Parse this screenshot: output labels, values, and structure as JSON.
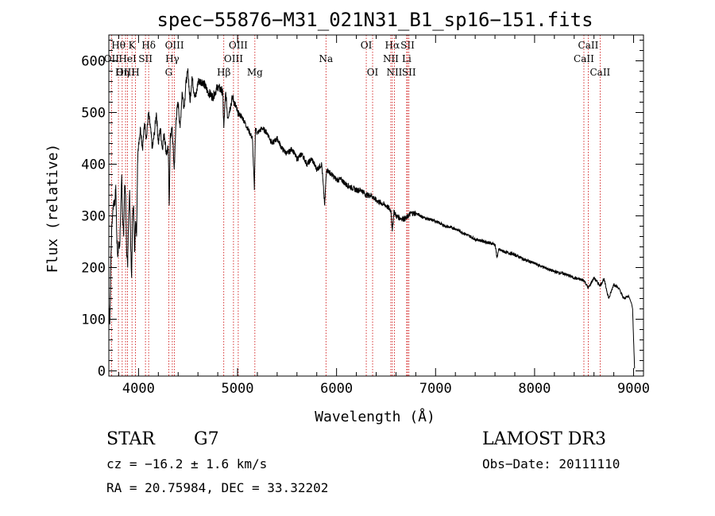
{
  "chart_data": {
    "type": "line",
    "title": "spec−55876−M31_021N31_B1_sp16−151.fits",
    "xlabel": "Wavelength (Å)",
    "ylabel": "Flux (relative)",
    "xlim": [
      3700,
      9100
    ],
    "ylim": [
      -10,
      650
    ],
    "xticks": [
      4000,
      5000,
      6000,
      7000,
      8000,
      9000
    ],
    "yticks": [
      0,
      100,
      200,
      300,
      400,
      500,
      600
    ],
    "series": [
      {
        "name": "spectrum",
        "x": [
          3700,
          3710,
          3720,
          3730,
          3740,
          3750,
          3760,
          3770,
          3780,
          3790,
          3800,
          3810,
          3820,
          3830,
          3840,
          3850,
          3860,
          3870,
          3880,
          3890,
          3900,
          3910,
          3920,
          3930,
          3940,
          3950,
          3960,
          3970,
          3980,
          3990,
          4000,
          4020,
          4040,
          4060,
          4080,
          4100,
          4120,
          4140,
          4160,
          4180,
          4200,
          4220,
          4240,
          4260,
          4280,
          4300,
          4310,
          4320,
          4340,
          4360,
          4380,
          4400,
          4420,
          4440,
          4460,
          4480,
          4500,
          4520,
          4540,
          4560,
          4580,
          4600,
          4650,
          4700,
          4750,
          4800,
          4850,
          4861,
          4880,
          4900,
          4950,
          5000,
          5050,
          5100,
          5150,
          5170,
          5180,
          5200,
          5250,
          5300,
          5350,
          5400,
          5450,
          5500,
          5550,
          5600,
          5650,
          5700,
          5750,
          5800,
          5850,
          5880,
          5890,
          5900,
          5950,
          6000,
          6050,
          6100,
          6150,
          6200,
          6250,
          6300,
          6350,
          6400,
          6450,
          6500,
          6550,
          6563,
          6580,
          6600,
          6650,
          6700,
          6750,
          6800,
          6900,
          7000,
          7100,
          7200,
          7300,
          7400,
          7500,
          7600,
          7620,
          7640,
          7700,
          7800,
          7900,
          8000,
          8100,
          8200,
          8300,
          8400,
          8500,
          8542,
          8600,
          8662,
          8700,
          8750,
          8800,
          8850,
          8900,
          8950,
          8980,
          8990,
          9000,
          9010
        ],
        "values": [
          130,
          90,
          210,
          280,
          310,
          330,
          320,
          360,
          260,
          220,
          250,
          240,
          310,
          380,
          300,
          260,
          360,
          340,
          230,
          200,
          300,
          350,
          250,
          180,
          300,
          320,
          230,
          290,
          260,
          400,
          440,
          470,
          430,
          480,
          450,
          500,
          470,
          430,
          460,
          500,
          440,
          470,
          430,
          460,
          420,
          430,
          320,
          450,
          470,
          390,
          490,
          520,
          470,
          540,
          510,
          560,
          580,
          520,
          570,
          540,
          530,
          560,
          560,
          540,
          530,
          550,
          540,
          470,
          540,
          490,
          530,
          500,
          490,
          470,
          450,
          350,
          470,
          460,
          470,
          460,
          440,
          450,
          430,
          420,
          430,
          410,
          420,
          400,
          410,
          390,
          400,
          320,
          360,
          390,
          380,
          370,
          370,
          360,
          355,
          350,
          350,
          340,
          340,
          330,
          325,
          320,
          310,
          270,
          310,
          300,
          295,
          295,
          305,
          305,
          295,
          290,
          280,
          275,
          265,
          255,
          250,
          245,
          220,
          235,
          230,
          225,
          215,
          208,
          200,
          192,
          188,
          180,
          175,
          160,
          180,
          165,
          178,
          140,
          168,
          160,
          140,
          145,
          130,
          120,
          60,
          5
        ]
      }
    ],
    "line_markers": [
      {
        "label": "Hθ",
        "x": 3797,
        "row": 1
      },
      {
        "label": "OII",
        "x": 3727,
        "row": 2
      },
      {
        "label": "OIII",
        "x": 3869,
        "row": 3
      },
      {
        "label": "K",
        "x": 3934,
        "row": 1
      },
      {
        "label": "Hη",
        "x": 3835,
        "row": 3
      },
      {
        "label": "HeI",
        "x": 3889,
        "row": 2
      },
      {
        "label": "H",
        "x": 3969,
        "row": 3
      },
      {
        "label": "Hδ",
        "x": 4102,
        "row": 1
      },
      {
        "label": "SII",
        "x": 4070,
        "row": 2
      },
      {
        "label": "OIII",
        "x": 4363,
        "row": 1
      },
      {
        "label": "Hγ",
        "x": 4341,
        "row": 2
      },
      {
        "label": "G",
        "x": 4305,
        "row": 3
      },
      {
        "label": "Hβ",
        "x": 4861,
        "row": 3
      },
      {
        "label": "OIII",
        "x": 5007,
        "row": 1
      },
      {
        "label": "OIII",
        "x": 4959,
        "row": 2
      },
      {
        "label": "Mg",
        "x": 5175,
        "row": 3
      },
      {
        "label": "Na",
        "x": 5893,
        "row": 2
      },
      {
        "label": "OI",
        "x": 6300,
        "row": 1
      },
      {
        "label": "OI",
        "x": 6364,
        "row": 3
      },
      {
        "label": "Hα",
        "x": 6563,
        "row": 1
      },
      {
        "label": "SII",
        "x": 6717,
        "row": 1
      },
      {
        "label": "NII",
        "x": 6548,
        "row": 2
      },
      {
        "label": "Li",
        "x": 6708,
        "row": 2
      },
      {
        "label": "NII",
        "x": 6584,
        "row": 3
      },
      {
        "label": "SII",
        "x": 6731,
        "row": 3
      },
      {
        "label": "CaII",
        "x": 8542,
        "row": 1
      },
      {
        "label": "CaII",
        "x": 8498,
        "row": 2
      },
      {
        "label": "CaII",
        "x": 8662,
        "row": 3
      }
    ],
    "colors": {
      "line": "#000000",
      "marker": "#cc0000",
      "axis": "#000000"
    }
  },
  "info": {
    "class": "STAR",
    "subclass": "G7",
    "cz": "cz = −16.2 ± 1.6 km/s",
    "radec": "RA =  20.75984, DEC =  33.32202",
    "survey": "LAMOST DR3",
    "obsdate": "Obs−Date: 20111110"
  }
}
